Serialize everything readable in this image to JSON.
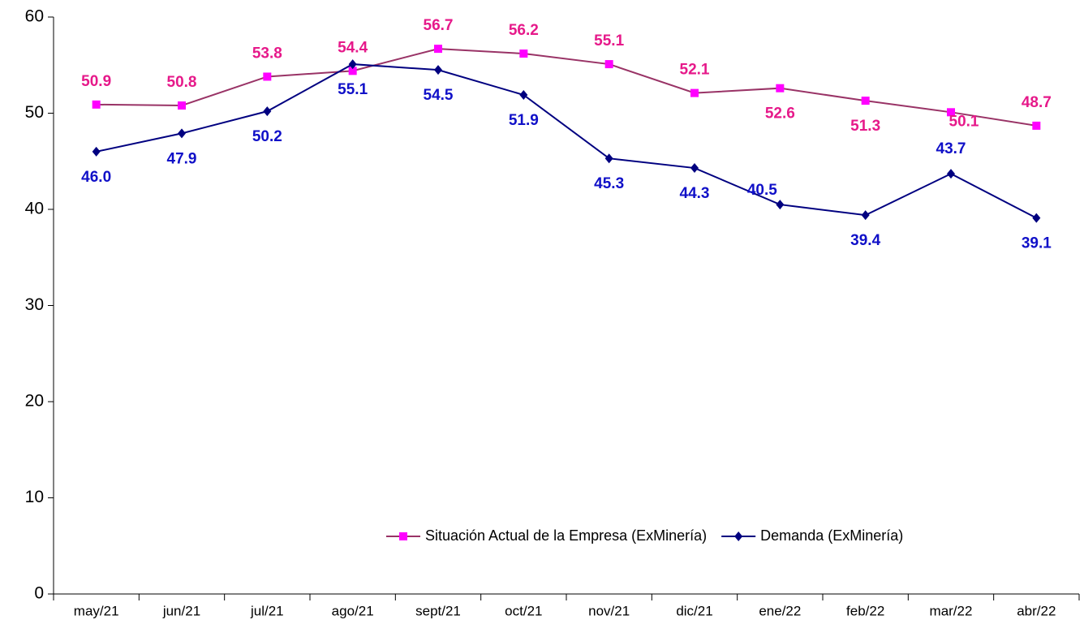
{
  "chart_data": {
    "type": "line",
    "categories": [
      "may/21",
      "jun/21",
      "jul/21",
      "ago/21",
      "sept/21",
      "oct/21",
      "nov/21",
      "dic/21",
      "ene/22",
      "feb/22",
      "mar/22",
      "abr/22"
    ],
    "series": [
      {
        "name": "Situación Actual de la Empresa (ExMinería)",
        "color": "#993366",
        "marker_color": "#ff00ff",
        "label_color": "#e6198a",
        "marker": "square",
        "values": [
          50.9,
          50.8,
          53.8,
          54.4,
          56.7,
          56.2,
          55.1,
          52.1,
          52.6,
          51.3,
          50.1,
          48.7
        ],
        "value_labels": [
          "50.9",
          "50.8",
          "53.8",
          "54.4",
          "56.7",
          "56.2",
          "55.1",
          "52.1",
          "52.6",
          "51.3",
          "50.1",
          "48.7"
        ]
      },
      {
        "name": "Demanda (ExMinería)",
        "color": "#000080",
        "marker_color": "#000080",
        "label_color": "#1010c8",
        "marker": "diamond",
        "values": [
          46.0,
          47.9,
          50.2,
          55.1,
          54.5,
          51.9,
          45.3,
          44.3,
          40.5,
          39.4,
          43.7,
          39.1
        ],
        "value_labels": [
          "46.0",
          "47.9",
          "50.2",
          "55.1",
          "54.5",
          "51.9",
          "45.3",
          "44.3",
          "40.5",
          "39.4",
          "43.7",
          "39.1"
        ]
      }
    ],
    "ylim": [
      0,
      60
    ],
    "yticks": [
      0,
      10,
      20,
      30,
      40,
      50,
      60
    ],
    "grid": false,
    "legend": "lower right"
  }
}
